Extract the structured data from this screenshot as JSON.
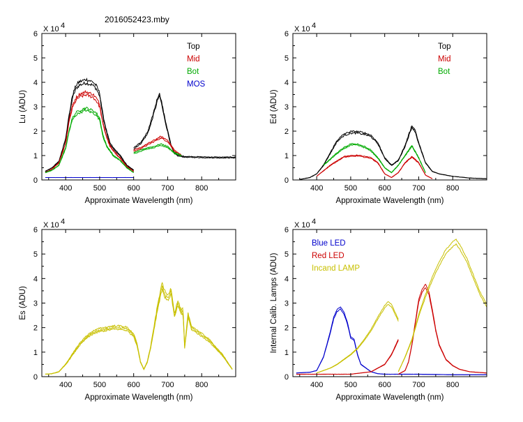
{
  "title": "2016052423.mby",
  "chart_data": [
    {
      "id": "lu",
      "type": "line",
      "xlabel": "Approximate Wavelength (nm)",
      "ylabel": "Lu (ADU)",
      "y_multiplier": "X 10",
      "y_exponent": "4",
      "xlim": [
        330,
        900
      ],
      "ylim": [
        0,
        6
      ],
      "xticks": [
        400,
        500,
        600,
        700,
        800
      ],
      "yticks": [
        0,
        1,
        2,
        3,
        4,
        5,
        6
      ],
      "legend_position": "top-right",
      "legend": [
        {
          "name": "Top",
          "color": "#000000"
        },
        {
          "name": "Mid",
          "color": "#cc0000"
        },
        {
          "name": "Bot",
          "color": "#00aa00"
        },
        {
          "name": "MOS",
          "color": "#0000cc"
        }
      ],
      "series": [
        {
          "name": "Top",
          "color": "#000000",
          "segments": [
            {
              "x": [
                340,
                360,
                380,
                390,
                400,
                410,
                420,
                430,
                440,
                450,
                460,
                470,
                480,
                490,
                500,
                510,
                520,
                530,
                540,
                560,
                580,
                600
              ],
              "y": [
                0.35,
                0.5,
                0.75,
                1.2,
                1.7,
                2.6,
                3.4,
                3.8,
                3.95,
                4.0,
                4.05,
                4.0,
                3.95,
                3.8,
                3.5,
                2.6,
                2.0,
                1.5,
                1.3,
                1.0,
                0.6,
                0.4
              ]
            },
            {
              "x": [
                600,
                620,
                640,
                650,
                660,
                670,
                675,
                680,
                690,
                700,
                710,
                720,
                730,
                750,
                800,
                850,
                900
              ],
              "y": [
                1.3,
                1.5,
                1.9,
                2.3,
                2.8,
                3.3,
                3.5,
                3.3,
                2.6,
                2.0,
                1.4,
                1.1,
                1.0,
                0.95,
                0.93,
                0.92,
                0.92
              ]
            }
          ]
        },
        {
          "name": "Mid",
          "color": "#cc0000",
          "segments": [
            {
              "x": [
                340,
                360,
                380,
                390,
                400,
                410,
                420,
                430,
                440,
                450,
                460,
                470,
                480,
                490,
                500,
                510,
                520,
                530,
                540,
                560,
                580,
                600
              ],
              "y": [
                0.3,
                0.45,
                0.7,
                1.1,
                1.5,
                2.4,
                3.0,
                3.3,
                3.45,
                3.5,
                3.55,
                3.5,
                3.45,
                3.3,
                3.05,
                2.3,
                1.8,
                1.4,
                1.2,
                0.9,
                0.55,
                0.35
              ]
            },
            {
              "x": [
                600,
                620,
                640,
                660,
                680,
                700,
                720,
                740
              ],
              "y": [
                1.2,
                1.3,
                1.45,
                1.6,
                1.75,
                1.6,
                1.2,
                1.0
              ]
            }
          ]
        },
        {
          "name": "Bot",
          "color": "#00aa00",
          "segments": [
            {
              "x": [
                340,
                360,
                380,
                390,
                400,
                410,
                420,
                430,
                440,
                450,
                460,
                470,
                480,
                490,
                500,
                510,
                520,
                530,
                540,
                560,
                580,
                600
              ],
              "y": [
                0.3,
                0.4,
                0.6,
                0.95,
                1.3,
                2.0,
                2.5,
                2.7,
                2.8,
                2.85,
                2.9,
                2.85,
                2.8,
                2.7,
                2.5,
                1.8,
                1.4,
                1.2,
                1.0,
                0.8,
                0.5,
                0.3
              ]
            },
            {
              "x": [
                600,
                620,
                640,
                660,
                680,
                700,
                720,
                740
              ],
              "y": [
                1.1,
                1.2,
                1.3,
                1.35,
                1.45,
                1.35,
                1.1,
                1.0
              ]
            }
          ]
        },
        {
          "name": "MOS",
          "color": "#0000cc",
          "segments": [
            {
              "x": [
                340,
                600
              ],
              "y": [
                0.1,
                0.1
              ]
            }
          ]
        }
      ]
    },
    {
      "id": "ed",
      "type": "line",
      "xlabel": "Approximate Wavelength (nm)",
      "ylabel": "Ed (ADU)",
      "y_multiplier": "X 10",
      "y_exponent": "4",
      "xlim": [
        330,
        900
      ],
      "ylim": [
        0,
        6
      ],
      "xticks": [
        400,
        500,
        600,
        700,
        800
      ],
      "yticks": [
        0,
        1,
        2,
        3,
        4,
        5,
        6
      ],
      "legend_position": "top-right",
      "legend": [
        {
          "name": "Top",
          "color": "#000000"
        },
        {
          "name": "Mid",
          "color": "#cc0000"
        },
        {
          "name": "Bot",
          "color": "#00aa00"
        }
      ],
      "series": [
        {
          "name": "Top",
          "color": "#000000",
          "segments": [
            {
              "x": [
                350,
                380,
                400,
                420,
                440,
                460,
                480,
                500,
                520,
                540,
                560,
                580,
                600,
                620,
                640,
                660,
                670,
                680,
                690,
                700,
                720,
                740,
                760,
                800,
                850,
                900
              ],
              "y": [
                0.02,
                0.1,
                0.25,
                0.6,
                1.1,
                1.6,
                1.85,
                1.95,
                1.95,
                1.9,
                1.8,
                1.5,
                0.9,
                0.6,
                0.8,
                1.4,
                1.8,
                2.2,
                2.0,
                1.5,
                0.7,
                0.35,
                0.25,
                0.15,
                0.08,
                0.05
              ]
            }
          ]
        },
        {
          "name": "Mid",
          "color": "#cc0000",
          "segments": [
            {
              "x": [
                400,
                440,
                480,
                520,
                560,
                580,
                600,
                620,
                640,
                660,
                680,
                700,
                720,
                740
              ],
              "y": [
                0.15,
                0.6,
                0.95,
                1.0,
                0.9,
                0.7,
                0.25,
                0.1,
                0.3,
                0.7,
                0.95,
                0.7,
                0.2,
                0.05
              ]
            }
          ]
        },
        {
          "name": "Bot",
          "color": "#00aa00",
          "segments": [
            {
              "x": [
                420,
                460,
                480,
                500,
                520,
                540,
                560,
                580,
                600,
                620,
                640,
                660,
                680,
                700,
                720
              ],
              "y": [
                0.6,
                1.1,
                1.3,
                1.45,
                1.45,
                1.35,
                1.2,
                0.9,
                0.5,
                0.3,
                0.6,
                1.0,
                1.4,
                0.9,
                0.3
              ]
            }
          ]
        }
      ]
    },
    {
      "id": "es",
      "type": "line",
      "xlabel": "Approximate Wavelength (nm)",
      "ylabel": "Es (ADU)",
      "y_multiplier": "X 10",
      "y_exponent": "4",
      "xlim": [
        330,
        900
      ],
      "ylim": [
        0,
        6
      ],
      "xticks": [
        400,
        500,
        600,
        700,
        800
      ],
      "yticks": [
        0,
        1,
        2,
        3,
        4,
        5,
        6
      ],
      "legend_position": "none",
      "legend": [],
      "series": [
        {
          "name": "Es",
          "color": "#c8c000",
          "segments": [
            {
              "x": [
                340,
                360,
                380,
                400,
                420,
                440,
                460,
                480,
                500,
                520,
                540,
                560,
                580,
                600,
                610,
                620,
                630,
                640,
                650,
                660,
                670,
                680,
                685,
                690,
                700,
                710,
                720,
                730,
                740,
                745,
                750,
                760,
                770,
                780,
                800,
                820,
                840,
                860,
                880,
                890
              ],
              "y": [
                0.1,
                0.12,
                0.2,
                0.5,
                0.9,
                1.3,
                1.6,
                1.8,
                1.9,
                1.95,
                2.0,
                2.0,
                1.95,
                1.7,
                1.3,
                0.6,
                0.3,
                0.6,
                1.2,
                2.0,
                2.8,
                3.5,
                3.7,
                3.4,
                3.2,
                3.5,
                2.5,
                3.0,
                2.6,
                2.7,
                1.2,
                2.5,
                2.0,
                1.9,
                1.7,
                1.5,
                1.2,
                0.9,
                0.5,
                0.3
              ]
            }
          ]
        }
      ]
    },
    {
      "id": "lamps",
      "type": "line",
      "xlabel": "Approximate Wavelength (nm)",
      "ylabel": "Internal Calib. Lamps (ADU)",
      "y_multiplier": "X 10",
      "y_exponent": "4",
      "xlim": [
        330,
        900
      ],
      "ylim": [
        0,
        6
      ],
      "xticks": [
        400,
        500,
        600,
        700,
        800
      ],
      "yticks": [
        0,
        1,
        2,
        3,
        4,
        5,
        6
      ],
      "legend_position": "top-left",
      "legend": [
        {
          "name": "Blue LED",
          "color": "#0000cc"
        },
        {
          "name": "Red LED",
          "color": "#cc0000"
        },
        {
          "name": "Incand LAMP",
          "color": "#c8c000"
        }
      ],
      "series": [
        {
          "name": "Blue LED",
          "color": "#0000cc",
          "segments": [
            {
              "x": [
                340,
                380,
                400,
                420,
                440,
                450,
                460,
                470,
                480,
                490,
                500,
                510,
                520,
                530,
                540,
                560,
                580,
                600,
                640,
                700,
                800,
                900
              ],
              "y": [
                0.15,
                0.18,
                0.25,
                0.8,
                1.8,
                2.4,
                2.7,
                2.8,
                2.6,
                2.2,
                1.6,
                1.5,
                0.9,
                0.5,
                0.4,
                0.2,
                0.12,
                0.1,
                0.1,
                0.1,
                0.08,
                0.08
              ]
            }
          ]
        },
        {
          "name": "Red LED",
          "color": "#cc0000",
          "segments": [
            {
              "x": [
                340,
                500,
                560,
                600,
                620,
                640
              ],
              "y": [
                0.1,
                0.1,
                0.2,
                0.5,
                0.9,
                1.5
              ]
            },
            {
              "x": [
                640,
                660,
                670,
                680,
                690,
                700,
                710,
                720,
                730,
                740,
                750,
                760,
                780,
                800,
                820,
                850,
                900
              ],
              "y": [
                0.1,
                0.25,
                0.6,
                1.3,
                2.2,
                3.1,
                3.5,
                3.7,
                3.4,
                2.7,
                1.9,
                1.3,
                0.7,
                0.45,
                0.3,
                0.2,
                0.15
              ]
            }
          ]
        },
        {
          "name": "Incand LAMP",
          "color": "#c8c000",
          "segments": [
            {
              "x": [
                400,
                420,
                440,
                460,
                480,
                500,
                520,
                540,
                560,
                580,
                600,
                610,
                620,
                630,
                640
              ],
              "y": [
                0.15,
                0.25,
                0.35,
                0.5,
                0.7,
                0.9,
                1.15,
                1.5,
                1.9,
                2.4,
                2.85,
                3.0,
                2.9,
                2.6,
                2.3
              ]
            },
            {
              "x": [
                640,
                660,
                680,
                700,
                720,
                740,
                760,
                780,
                800,
                810,
                820,
                840,
                860,
                880,
                900
              ],
              "y": [
                0.2,
                0.8,
                1.5,
                2.5,
                3.3,
                4.0,
                4.6,
                5.1,
                5.4,
                5.5,
                5.3,
                4.8,
                4.1,
                3.4,
                2.9
              ]
            }
          ]
        }
      ]
    }
  ]
}
